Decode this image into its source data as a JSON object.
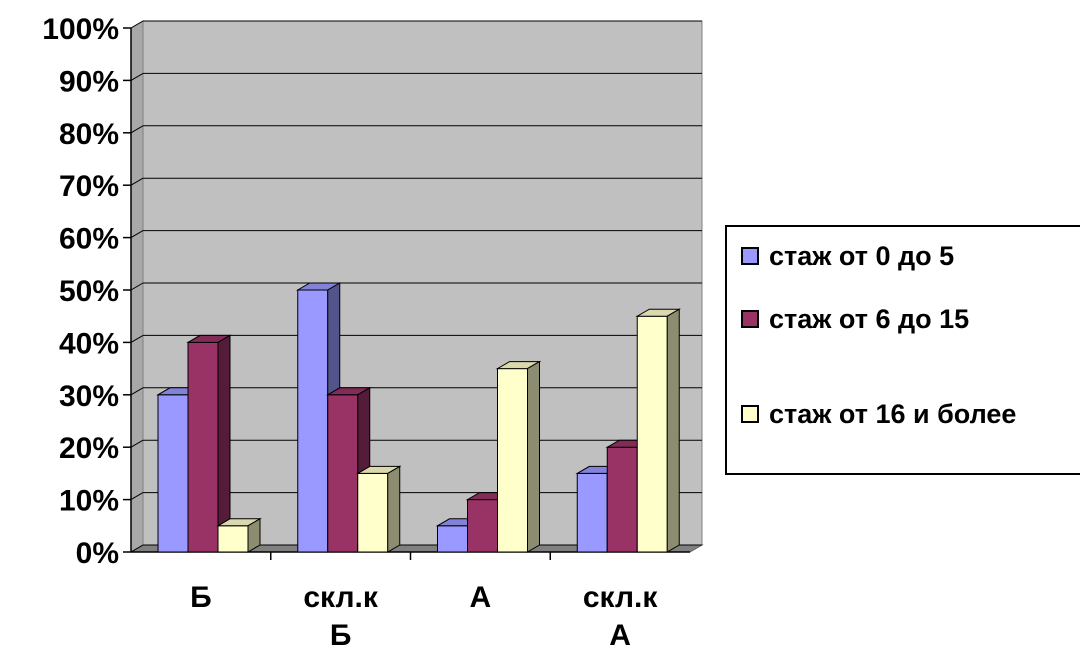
{
  "chart_data": {
    "type": "bar",
    "categories": [
      [
        "Б"
      ],
      [
        "скл.к",
        "Б"
      ],
      [
        "А"
      ],
      [
        "скл.к",
        "А"
      ]
    ],
    "series": [
      {
        "name": "стаж от 0 до 5",
        "values": [
          30,
          50,
          5,
          15
        ],
        "color": "#9999FF"
      },
      {
        "name": "стаж от 6 до 15",
        "values": [
          40,
          30,
          10,
          20
        ],
        "color": "#993366"
      },
      {
        "name": "стаж от 16 и более",
        "values": [
          5,
          15,
          35,
          45
        ],
        "color": "#FFFFCC"
      }
    ],
    "y_ticks": [
      "0%",
      "10%",
      "20%",
      "30%",
      "40%",
      "50%",
      "60%",
      "70%",
      "80%",
      "90%",
      "100%"
    ],
    "ylim": [
      0,
      100
    ],
    "grid": true,
    "wall_color": "#C0C0C0",
    "legend_position": "right"
  },
  "legend": {
    "items": [
      {
        "label": "стаж от 0 до 5"
      },
      {
        "label": "стаж от 6 до 15"
      },
      {
        "label": "стаж от 16 и более"
      }
    ]
  }
}
